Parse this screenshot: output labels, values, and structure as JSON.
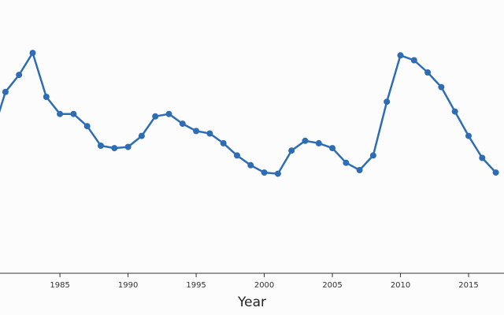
{
  "chart_data": {
    "type": "line",
    "xlabel": "Year",
    "ylabel": "",
    "title": "",
    "grid": false,
    "x_ticks": [
      "1985",
      "1990",
      "1995",
      "2000",
      "2005",
      "2010",
      "2015"
    ],
    "xlim": [
      1980.6,
      2017.6
    ],
    "ylim": [
      0,
      100
    ],
    "color": "#2e6db4",
    "series": [
      {
        "name": "",
        "x": [
          1980,
          1981,
          1982,
          1983,
          1984,
          1985,
          1986,
          1987,
          1988,
          1989,
          1990,
          1991,
          1992,
          1993,
          1994,
          1995,
          1996,
          1997,
          1998,
          1999,
          2000,
          2001,
          2002,
          2003,
          2004,
          2005,
          2006,
          2007,
          2008,
          2009,
          2010,
          2011,
          2012,
          2013,
          2014,
          2015,
          2016,
          2017
        ],
        "y": [
          54,
          72,
          79,
          88,
          70,
          63,
          63,
          58,
          50,
          49,
          49.5,
          54,
          62,
          63,
          59,
          56,
          55,
          51,
          46,
          42,
          39,
          38.5,
          48,
          52,
          51,
          49,
          43,
          40,
          46,
          68,
          87,
          85,
          80,
          74,
          64,
          54,
          45,
          39
        ]
      }
    ]
  }
}
